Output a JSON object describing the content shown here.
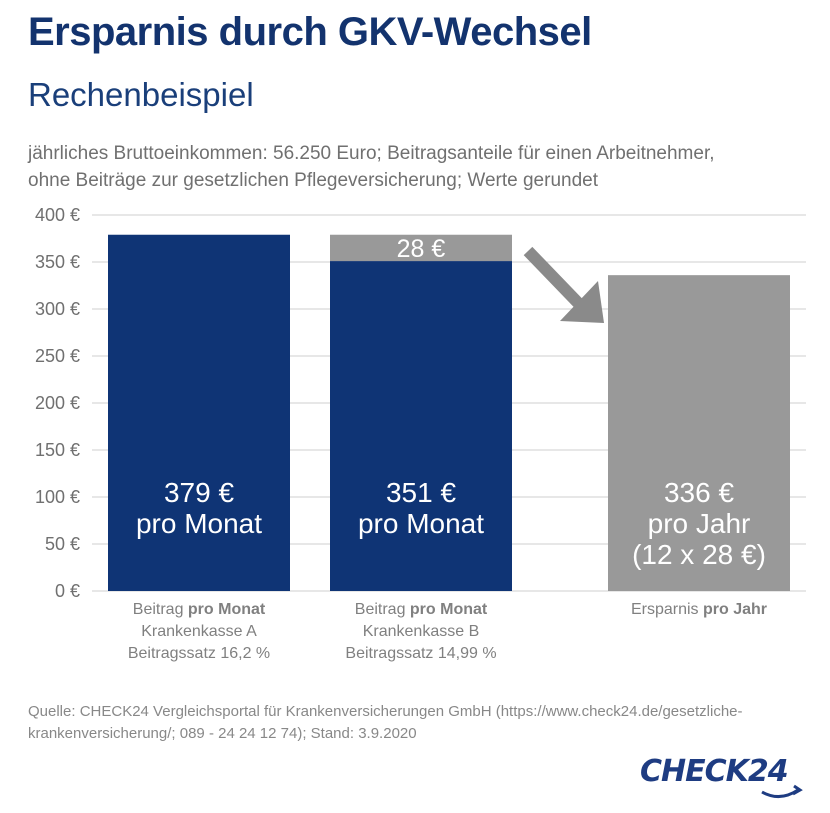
{
  "header": {
    "title": "Ersparnis durch GKV-Wechsel",
    "subtitle": "Rechenbeispiel",
    "note_lines": [
      "jährliches Bruttoeinkommen: 56.250 Euro; Beitragsanteile für einen Arbeitnehmer,",
      "ohne Beiträge zur gesetzlichen Pflegeversicherung; Werte gerundet"
    ]
  },
  "chart_data": {
    "type": "bar",
    "ylim": [
      0,
      400
    ],
    "yticks": [
      0,
      50,
      100,
      150,
      200,
      250,
      300,
      350,
      400
    ],
    "ytick_labels": [
      "0 €",
      "50 €",
      "100 €",
      "150 €",
      "200 €",
      "250 €",
      "300 €",
      "350 €",
      "400 €"
    ],
    "grid": true,
    "bars": [
      {
        "value": 379,
        "label_lines": [
          "379 €",
          "pro Monat"
        ],
        "color": "#0f3475",
        "category_lines": [
          {
            "normal": "Beitrag ",
            "bold": "pro Monat"
          },
          {
            "normal": "Krankenkasse A",
            "bold": ""
          },
          {
            "normal": "Beitragssatz 16,2 %",
            "bold": ""
          }
        ]
      },
      {
        "value": 351,
        "savings_segment": 28,
        "savings_label": "28 €",
        "label_lines": [
          "351 €",
          "pro Monat"
        ],
        "color": "#0f3475",
        "segment_color": "#999999",
        "category_lines": [
          {
            "normal": "Beitrag ",
            "bold": "pro Monat"
          },
          {
            "normal": "Krankenkasse B",
            "bold": ""
          },
          {
            "normal": "Beitragssatz  14,99 %",
            "bold": ""
          }
        ]
      },
      {
        "value": 336,
        "label_lines": [
          "336 €",
          "pro Jahr",
          "(12 x 28 €)"
        ],
        "color": "#999999",
        "category_lines": [
          {
            "normal": "Ersparnis ",
            "bold": "pro Jahr"
          }
        ]
      }
    ]
  },
  "source_lines": [
    "Quelle: CHECK24 Vergleichsportal für Krankenversicherungen GmbH (https://www.check24.de/gesetzliche-",
    "krankenversicherung/; 089 - 24 24 12 74); Stand: 3.9.2020"
  ],
  "logo": {
    "text": "CHECK24",
    "color": "#1e3c82",
    "icon": "check24-logo-swoosh-icon"
  }
}
